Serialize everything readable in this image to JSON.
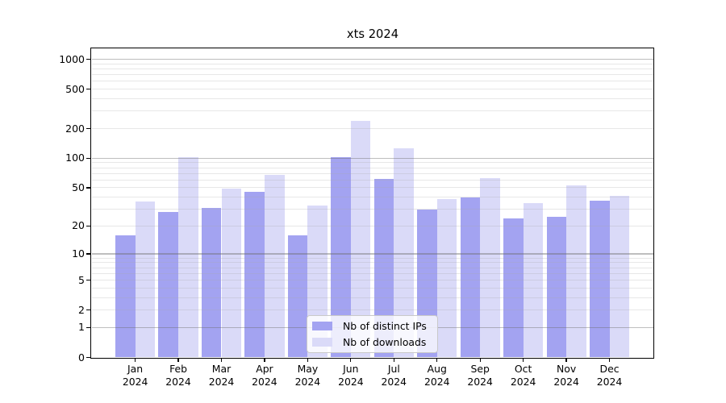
{
  "page": {
    "background": "#ffffff"
  },
  "chart_data": {
    "type": "bar",
    "title": "xts 2024",
    "categories": [
      "Jan 2024",
      "Feb 2024",
      "Mar 2024",
      "Apr 2024",
      "May 2024",
      "Jun 2024",
      "Jul 2024",
      "Aug 2024",
      "Sep 2024",
      "Oct 2024",
      "Nov 2024",
      "Dec 2024"
    ],
    "series": [
      {
        "name": "Nb of distinct IPs",
        "color": "#a3a3f1",
        "values": [
          16,
          28,
          31,
          45,
          16,
          102,
          61,
          30,
          40,
          24,
          25,
          37
        ]
      },
      {
        "name": "Nb of downloads",
        "color": "#dadaf8",
        "values": [
          36,
          102,
          49,
          68,
          33,
          240,
          126,
          38,
          63,
          35,
          53,
          41
        ]
      }
    ],
    "yscale": "log1p",
    "yticks": [
      0,
      1,
      2,
      5,
      10,
      20,
      50,
      100,
      200,
      500,
      1000
    ],
    "ytick_labels": [
      "0",
      "1",
      "2",
      "5",
      "10",
      "20",
      "50",
      "100",
      "200",
      "500",
      "1000"
    ],
    "ylim": [
      0,
      1290
    ],
    "xlabel": "",
    "ylabel": "",
    "grid": {
      "major_at": [
        1,
        10,
        100,
        1000
      ],
      "minor": "log decade subdivisions 2-9",
      "drawn_over_bars": true
    },
    "legend_position": "lower center inside plot",
    "frame": "full box"
  }
}
